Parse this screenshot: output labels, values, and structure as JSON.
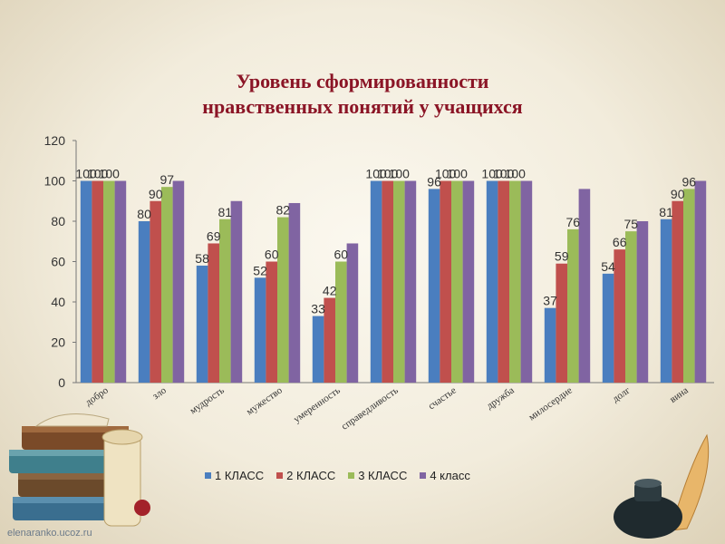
{
  "title": {
    "line1": "Уровень сформированности",
    "line2": "нравственных понятий у учащихся"
  },
  "chart_data": {
    "type": "bar",
    "categories": [
      "добро",
      "зло",
      "мудрость",
      "мужество",
      "умеренность",
      "справедливость",
      "счастье",
      "дружба",
      "милосердие",
      "долг",
      "вина"
    ],
    "series": [
      {
        "name": "1 КЛАСС",
        "color": "#4a7ebf",
        "values": [
          100,
          80,
          58,
          52,
          33,
          100,
          96,
          100,
          37,
          54,
          81
        ]
      },
      {
        "name": "2 КЛАСС",
        "color": "#c0504d",
        "values": [
          100,
          90,
          69,
          60,
          42,
          100,
          100,
          100,
          59,
          66,
          90
        ]
      },
      {
        "name": "3 КЛАСС",
        "color": "#9bbb59",
        "values": [
          100,
          97,
          81,
          82,
          60,
          100,
          100,
          100,
          76,
          75,
          96
        ]
      },
      {
        "name": "4 класс",
        "color": "#8064a2",
        "values": [
          100,
          100,
          90,
          89,
          69,
          100,
          100,
          100,
          96,
          80,
          100
        ]
      }
    ],
    "data_labels_series": [
      "1 КЛАСС",
      "2 КЛАСС",
      "3 КЛАСС"
    ],
    "y_ticks": [
      "0",
      "20",
      "40",
      "60",
      "80",
      "100",
      "120"
    ],
    "ylim": [
      0,
      120
    ],
    "grid": false,
    "legend_position": "bottom"
  },
  "watermark": "elenaranko.ucoz.ru",
  "decorations": [
    "books-stack-icon",
    "scroll-icon",
    "quill-inkwell-icon"
  ]
}
